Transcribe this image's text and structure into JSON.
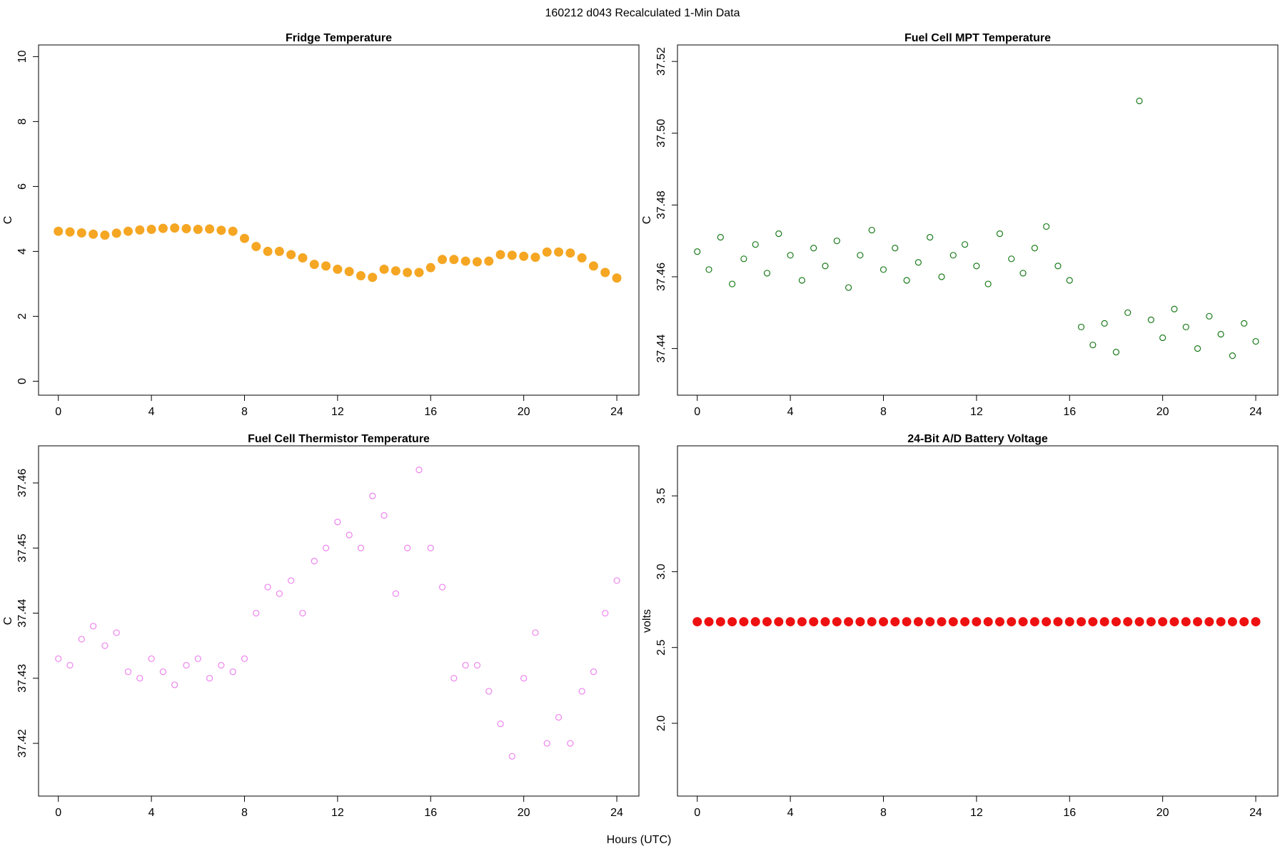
{
  "title": "160212   d043   Recalculated 1-Min Data",
  "xlabel": "Hours (UTC)",
  "chart_data": [
    {
      "type": "scatter",
      "title": "Fridge Temperature",
      "ylabel": "C",
      "color": "#f5a623",
      "filled": true,
      "x": [
        0,
        0.5,
        1,
        1.5,
        2,
        2.5,
        3,
        3.5,
        4,
        4.5,
        5,
        5.5,
        6,
        6.5,
        7,
        7.5,
        8,
        8.5,
        9,
        9.5,
        10,
        10.5,
        11,
        11.5,
        12,
        12.5,
        13,
        13.5,
        14,
        14.5,
        15,
        15.5,
        16,
        16.5,
        17,
        17.5,
        18,
        18.5,
        19,
        19.5,
        20,
        20.5,
        21,
        21.5,
        22,
        22.5,
        23,
        23.5,
        24
      ],
      "values": [
        4.62,
        4.6,
        4.57,
        4.53,
        4.5,
        4.56,
        4.62,
        4.66,
        4.68,
        4.71,
        4.72,
        4.7,
        4.68,
        4.69,
        4.65,
        4.62,
        4.4,
        4.15,
        4.0,
        4.0,
        3.9,
        3.8,
        3.6,
        3.55,
        3.45,
        3.38,
        3.25,
        3.2,
        3.45,
        3.4,
        3.35,
        3.35,
        3.5,
        3.75,
        3.75,
        3.7,
        3.68,
        3.7,
        3.9,
        3.88,
        3.85,
        3.82,
        3.98,
        3.98,
        3.95,
        3.8,
        3.55,
        3.35,
        3.18
      ],
      "xlim": [
        -0.85,
        24.95
      ],
      "ylim": [
        -0.43,
        10.36
      ],
      "xticks": [
        0,
        4,
        8,
        12,
        16,
        20,
        24
      ],
      "yticks": [
        0,
        2,
        4,
        6,
        8,
        10
      ]
    },
    {
      "type": "scatter",
      "title": "Fuel Cell MPT Temperature",
      "ylabel": "C",
      "color": "#1a7a1a",
      "filled": false,
      "x": [
        0,
        0.5,
        1,
        1.5,
        2,
        2.5,
        3,
        3.5,
        4,
        4.5,
        5,
        5.5,
        6,
        6.5,
        7,
        7.5,
        8,
        8.5,
        9,
        9.5,
        10,
        10.5,
        11,
        11.5,
        12,
        12.5,
        13,
        13.5,
        14,
        14.5,
        15,
        15.5,
        16,
        16.5,
        17,
        17.5,
        18,
        18.5,
        19,
        19.5,
        20,
        20.5,
        21,
        21.5,
        22,
        22.5,
        23,
        23.5,
        24
      ],
      "values": [
        37.467,
        37.462,
        37.471,
        37.458,
        37.465,
        37.469,
        37.461,
        37.472,
        37.466,
        37.459,
        37.468,
        37.463,
        37.47,
        37.457,
        37.466,
        37.473,
        37.462,
        37.468,
        37.459,
        37.464,
        37.471,
        37.46,
        37.466,
        37.469,
        37.463,
        37.458,
        37.472,
        37.465,
        37.461,
        37.468,
        37.474,
        37.463,
        37.459,
        37.446,
        37.441,
        37.447,
        37.439,
        37.45,
        37.509,
        37.448,
        37.443,
        37.451,
        37.446,
        37.44,
        37.449,
        37.444,
        37.438,
        37.447,
        37.442
      ],
      "xlim": [
        -0.85,
        24.95
      ],
      "ylim": [
        37.427,
        37.5246
      ],
      "xticks": [
        0,
        4,
        8,
        12,
        16,
        20,
        24
      ],
      "yticks": [
        37.44,
        37.46,
        37.48,
        {
          "value": 37.5,
          "label": "37.50"
        },
        37.52
      ]
    },
    {
      "type": "scatter",
      "title": "Fuel Cell Thermistor Temperature",
      "ylabel": "C",
      "color": "#ee82ee",
      "filled": false,
      "x": [
        0,
        0.5,
        1,
        1.5,
        2,
        2.5,
        3,
        3.5,
        4,
        4.5,
        5,
        5.5,
        6,
        6.5,
        7,
        7.5,
        8,
        8.5,
        9,
        9.5,
        10,
        10.5,
        11,
        11.5,
        12,
        12.5,
        13,
        13.5,
        14,
        14.5,
        15,
        15.5,
        16,
        16.5,
        17,
        17.5,
        18,
        18.5,
        19,
        19.5,
        20,
        20.5,
        21,
        21.5,
        22,
        22.5,
        23,
        23.5,
        24
      ],
      "values": [
        37.433,
        37.432,
        37.436,
        37.438,
        37.435,
        37.437,
        37.431,
        37.43,
        37.433,
        37.431,
        37.429,
        37.432,
        37.433,
        37.43,
        37.432,
        37.431,
        37.433,
        37.44,
        37.444,
        37.443,
        37.445,
        37.44,
        37.448,
        37.45,
        37.454,
        37.452,
        37.45,
        37.458,
        37.455,
        37.443,
        37.45,
        37.462,
        37.45,
        37.444,
        37.43,
        37.432,
        37.432,
        37.428,
        37.423,
        37.418,
        37.43,
        37.437,
        37.42,
        37.424,
        37.42,
        37.428,
        37.431,
        37.44,
        37.445
      ],
      "xlim": [
        -0.85,
        24.95
      ],
      "ylim": [
        37.4119,
        37.4657
      ],
      "xticks": [
        0,
        4,
        8,
        12,
        16,
        20,
        24
      ],
      "yticks": [
        37.42,
        37.43,
        37.44,
        37.45,
        37.46
      ]
    },
    {
      "type": "scatter",
      "title": "24-Bit A/D Battery Voltage",
      "ylabel": "volts",
      "color": "#ee1111",
      "filled": true,
      "x": [
        0,
        0.5,
        1,
        1.5,
        2,
        2.5,
        3,
        3.5,
        4,
        4.5,
        5,
        5.5,
        6,
        6.5,
        7,
        7.5,
        8,
        8.5,
        9,
        9.5,
        10,
        10.5,
        11,
        11.5,
        12,
        12.5,
        13,
        13.5,
        14,
        14.5,
        15,
        15.5,
        16,
        16.5,
        17,
        17.5,
        18,
        18.5,
        19,
        19.5,
        20,
        20.5,
        21,
        21.5,
        22,
        22.5,
        23,
        23.5,
        24
      ],
      "values": [
        2.67,
        2.67,
        2.67,
        2.67,
        2.67,
        2.67,
        2.67,
        2.67,
        2.67,
        2.67,
        2.67,
        2.67,
        2.67,
        2.67,
        2.67,
        2.67,
        2.67,
        2.67,
        2.67,
        2.67,
        2.67,
        2.67,
        2.67,
        2.67,
        2.67,
        2.67,
        2.67,
        2.67,
        2.67,
        2.67,
        2.67,
        2.67,
        2.67,
        2.67,
        2.67,
        2.67,
        2.67,
        2.67,
        2.67,
        2.67,
        2.67,
        2.67,
        2.67,
        2.67,
        2.67,
        2.67,
        2.67,
        2.67,
        2.67
      ],
      "xlim": [
        -0.85,
        24.95
      ],
      "ylim": [
        1.52,
        3.83
      ],
      "xticks": [
        0,
        4,
        8,
        12,
        16,
        20,
        24
      ],
      "yticks": [
        {
          "value": 2,
          "label": "2.0"
        },
        2.5,
        {
          "value": 3,
          "label": "3.0"
        },
        3.5
      ]
    }
  ]
}
